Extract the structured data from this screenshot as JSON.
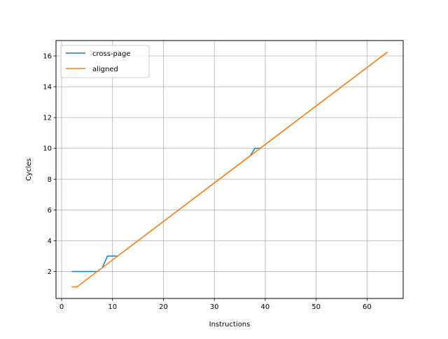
{
  "chart_data": {
    "type": "line",
    "xlabel": "Instructions",
    "ylabel": "Cycles",
    "xlim": [
      -1.1,
      67.1
    ],
    "ylim": [
      0.25,
      17.0
    ],
    "xticks": [
      0,
      10,
      20,
      30,
      40,
      50,
      60
    ],
    "yticks": [
      2,
      4,
      6,
      8,
      10,
      12,
      14,
      16
    ],
    "grid": true,
    "legend_position": "top-left",
    "series": [
      {
        "name": "cross-page",
        "color": "#1f77b4",
        "x": [
          2,
          3,
          4,
          5,
          6,
          7,
          8,
          9,
          10,
          11,
          37,
          38,
          39,
          64
        ],
        "y": [
          2.0,
          2.0,
          2.0,
          2.0,
          2.0,
          2.0,
          2.25,
          3.0,
          3.0,
          3.0,
          9.5,
          10.0,
          10.0,
          16.25
        ]
      },
      {
        "name": "aligned",
        "color": "#ff7f0e",
        "x": [
          2,
          3,
          4,
          5,
          6,
          7,
          8,
          9,
          10,
          11,
          37,
          38,
          39,
          64
        ],
        "y": [
          1.0,
          1.0,
          1.25,
          1.5,
          1.75,
          2.0,
          2.25,
          2.5,
          2.75,
          3.0,
          9.5,
          9.75,
          10.0,
          16.25
        ]
      }
    ]
  }
}
